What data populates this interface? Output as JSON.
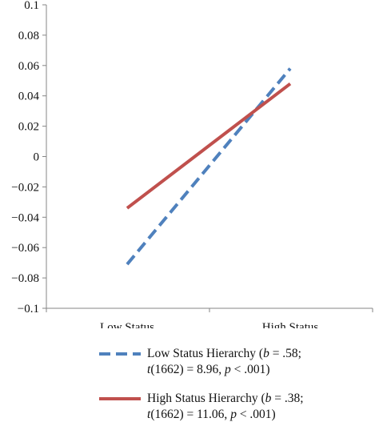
{
  "chart_data": {
    "type": "line",
    "categories": [
      "Low Status",
      "High Status"
    ],
    "ylim": [
      -0.1,
      0.1
    ],
    "y_ticks": [
      "0.1",
      "0.08",
      "0.06",
      "0.04",
      "0.02",
      "0",
      "−0.02",
      "−0.04",
      "−0.06",
      "−0.08",
      "−0.1"
    ],
    "y_tick_values": [
      0.1,
      0.08,
      0.06,
      0.04,
      0.02,
      0,
      -0.02,
      -0.04,
      -0.06,
      -0.08,
      -0.1
    ],
    "grid": false,
    "legend_position": "bottom",
    "series": [
      {
        "name": "Low Status Hierarchy (b = .58; t(1662) = 8.96, p < .001)",
        "values": [
          -0.071,
          0.058
        ],
        "color": "#4F81BD",
        "dashed": true
      },
      {
        "name": "High Status Hierarchy (b = .38; t(1662) = 11.06, p < .001)",
        "values": [
          -0.034,
          0.048
        ],
        "color": "#C0504D",
        "dashed": false
      }
    ]
  },
  "legend": {
    "low": {
      "part1": "Low Status Hierarchy (",
      "b_var": "b",
      "b_val": " = .58;",
      "t_var": "t",
      "t_val": "(1662) = 8.96, ",
      "p_var": "p",
      "p_val": " < .001)"
    },
    "high": {
      "part1": "High Status Hierarchy (",
      "b_var": "b",
      "b_val": " = .38;",
      "t_var": "t",
      "t_val": "(1662) = 11.06, ",
      "p_var": "p",
      "p_val": " < .001)"
    }
  }
}
